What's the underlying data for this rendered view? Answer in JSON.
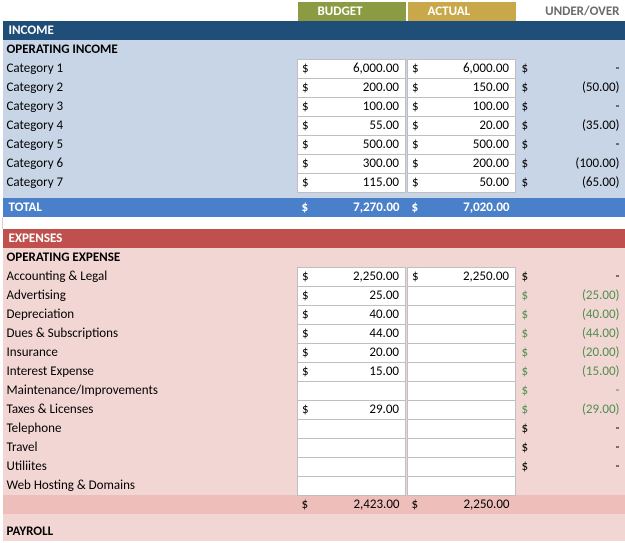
{
  "colors": {
    "header_budget_bg": "#8a9b42",
    "header_actual_bg": "#c9a84a",
    "header_under_bg": "#ffffff",
    "header_under_fg": "#6b6b6b",
    "income_bar": "#1f4e79",
    "income_body": "#c8d5e6",
    "income_total": "#4a7fc9",
    "expense_bar": "#c0504d",
    "expense_body": "#f2d6d3",
    "expense_subtotal": "#eebfba",
    "negative_green": "#4f8f4f",
    "text": "#000000"
  },
  "headers": {
    "budget": "BUDGET",
    "actual": "ACTUAL",
    "under": "UNDER/OVER"
  },
  "income": {
    "title": "INCOME",
    "subhead": "OPERATING INCOME",
    "rows": [
      {
        "label": "Category 1",
        "budget": "6,000.00",
        "actual": "6,000.00",
        "under": "-"
      },
      {
        "label": "Category 2",
        "budget": "200.00",
        "actual": "150.00",
        "under": "(50.00)"
      },
      {
        "label": "Category 3",
        "budget": "100.00",
        "actual": "100.00",
        "under": "-"
      },
      {
        "label": "Category 4",
        "budget": "55.00",
        "actual": "20.00",
        "under": "(35.00)"
      },
      {
        "label": "Category 5",
        "budget": "500.00",
        "actual": "500.00",
        "under": "-"
      },
      {
        "label": "Category 6",
        "budget": "300.00",
        "actual": "200.00",
        "under": "(100.00)"
      },
      {
        "label": "Category 7",
        "budget": "115.00",
        "actual": "50.00",
        "under": "(65.00)"
      }
    ],
    "total": {
      "label": "TOTAL",
      "budget": "7,270.00",
      "actual": "7,020.00"
    }
  },
  "expenses": {
    "title": "EXPENSES",
    "subhead": "OPERATING EXPENSE",
    "rows": [
      {
        "label": "Accounting & Legal",
        "budget": "2,250.00",
        "actual": "2,250.00",
        "under": "-",
        "under_green": false
      },
      {
        "label": "Advertising",
        "budget": "25.00",
        "actual": "",
        "under": "(25.00)",
        "under_green": true
      },
      {
        "label": "Depreciation",
        "budget": "40.00",
        "actual": "",
        "under": "(40.00)",
        "under_green": true
      },
      {
        "label": "Dues & Subscriptions",
        "budget": "44.00",
        "actual": "",
        "under": "(44.00)",
        "under_green": true
      },
      {
        "label": "Insurance",
        "budget": "20.00",
        "actual": "",
        "under": "(20.00)",
        "under_green": true
      },
      {
        "label": "Interest Expense",
        "budget": "15.00",
        "actual": "",
        "under": "(15.00)",
        "under_green": true
      },
      {
        "label": "Maintenance/Improvements",
        "budget": "",
        "actual": "",
        "under": "-",
        "under_green": true
      },
      {
        "label": "Taxes & Licenses",
        "budget": "29.00",
        "actual": "",
        "under": "(29.00)",
        "under_green": true
      },
      {
        "label": "Telephone",
        "budget": "",
        "actual": "",
        "under": "-",
        "under_green": false
      },
      {
        "label": "Travel",
        "budget": "",
        "actual": "",
        "under": "-",
        "under_green": false
      },
      {
        "label": "Utiliites",
        "budget": "",
        "actual": "",
        "under": "-",
        "under_green": false
      },
      {
        "label": "Web Hosting & Domains",
        "budget": "",
        "actual": "",
        "under": "",
        "under_green": false
      }
    ],
    "subtotal": {
      "budget": "2,423.00",
      "actual": "2,250.00"
    }
  },
  "payroll": {
    "title": "PAYROLL"
  }
}
